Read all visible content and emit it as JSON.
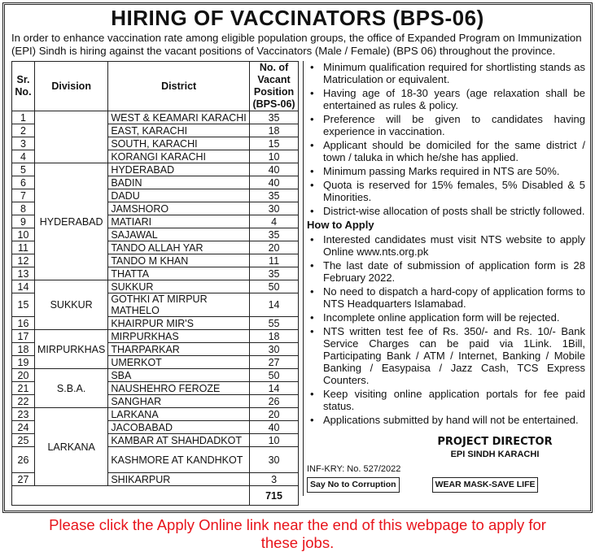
{
  "title": "HIRING OF VACCINATORS (BPS-06)",
  "intro": "In order to enhance vaccination rate among eligible population groups, the office of Expanded Program on Immunization (EPI) Sindh is hiring against the vacant positions of Vaccinators (Male / Female) (BPS 06) throughout the province.",
  "table": {
    "headers": [
      "Sr. No.",
      "Division",
      "District",
      "No. of Vacant Position (BPS-06)"
    ],
    "divisions": [
      {
        "name": "",
        "rows": [
          [
            "1",
            "WEST & KEAMARI KARACHI",
            "35"
          ],
          [
            "2",
            "EAST, KARACHI",
            "18"
          ],
          [
            "3",
            "SOUTH, KARACHI",
            "15"
          ],
          [
            "4",
            "KORANGI KARACHI",
            "10"
          ]
        ]
      },
      {
        "name": "HYDERABAD",
        "rows": [
          [
            "5",
            "HYDERABAD",
            "40"
          ],
          [
            "6",
            "BADIN",
            "40"
          ],
          [
            "7",
            "DADU",
            "35"
          ],
          [
            "8",
            "JAMSHORO",
            "30"
          ],
          [
            "9",
            "MATIARI",
            "4"
          ],
          [
            "10",
            "SAJAWAL",
            "35"
          ],
          [
            "11",
            "TANDO ALLAH YAR",
            "20"
          ],
          [
            "12",
            "TANDO M KHAN",
            "11"
          ],
          [
            "13",
            "THATTA",
            "35"
          ]
        ]
      },
      {
        "name": "SUKKUR",
        "rows": [
          [
            "14",
            "SUKKUR",
            "50"
          ],
          [
            "15",
            "GOTHKI AT MIRPUR MATHELO",
            "14"
          ],
          [
            "16",
            "KHAIRPUR MIR'S",
            "55"
          ]
        ]
      },
      {
        "name": "MIRPURKHAS",
        "rows": [
          [
            "17",
            "MIRPURKHAS",
            "18"
          ],
          [
            "18",
            "THARPARKAR",
            "30"
          ],
          [
            "19",
            "UMERKOT",
            "27"
          ]
        ]
      },
      {
        "name": "S.B.A.",
        "rows": [
          [
            "20",
            "SBA",
            "50"
          ],
          [
            "21",
            "NAUSHEHRO FEROZE",
            "14"
          ],
          [
            "22",
            "SANGHAR",
            "26"
          ]
        ]
      },
      {
        "name": "LARKANA",
        "rows": [
          [
            "23",
            "LARKANA",
            "20"
          ],
          [
            "24",
            "JACOBABAD",
            "40"
          ],
          [
            "25",
            "KAMBAR AT SHAHDADKOT",
            "10"
          ],
          [
            "26",
            "KASHMORE AT KANDHKOT",
            "30"
          ],
          [
            "27",
            "SHIKARPUR",
            "3"
          ]
        ]
      }
    ],
    "total": "715"
  },
  "criteria": [
    "Minimum qualification required for shortlisting stands as Matriculation or equivalent.",
    "Having age of 18-30 years (age relaxation shall be entertained as rules & policy.",
    "Preference will be given to candidates having experience in vaccination.",
    "Applicant should be domiciled for the same district / town / taluka in which he/she has applied.",
    "Minimum passing Marks required in NTS are 50%.",
    "Quota is reserved for 15% females, 5% Disabled & 5 Minorities.",
    "District-wise allocation of posts shall be strictly followed."
  ],
  "how_to_apply_title": "How to Apply",
  "how_to_apply": [
    "Interested candidates must visit NTS website to apply Online www.nts.org.pk",
    "The last date of submission of application form is 28 February 2022.",
    "No need to dispatch a hard-copy of application forms to NTS Headquarters Islamabad.",
    "Incomplete online application form will be rejected.",
    "NTS written test fee of Rs. 350/- and Rs. 10/- Bank Service Charges can be paid via 1Link. 1Bill, Participating Bank / ATM / Internet, Banking / Mobile Banking / Easypaisa / Jazz Cash, TCS Express Counters.",
    "Keep visiting online application portals for fee paid status.",
    "Applications submitted by hand will not be entertained."
  ],
  "signature": {
    "line1": "PROJECT DIRECTOR",
    "line2": "EPI SINDH KARACHI"
  },
  "inf_no": "INF-KRY: No. 527/2022",
  "badge_corruption": "Say No to Corruption",
  "badge_mask": "WEAR MASK-SAVE LIFE",
  "bottom_notice": "Please click the Apply Online link near the end of this webpage to apply for these jobs.",
  "colors": {
    "notice": "#e8141b",
    "border": "#222222"
  }
}
